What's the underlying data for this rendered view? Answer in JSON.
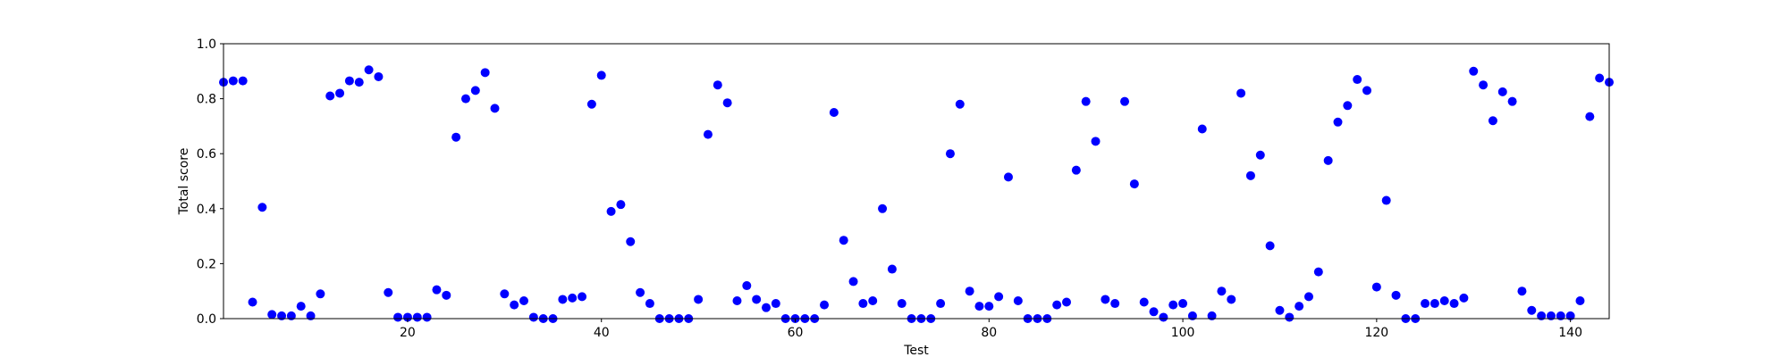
{
  "chart_data": {
    "type": "scatter",
    "title": "",
    "xlabel": "Test",
    "ylabel": "Total score",
    "xlim": [
      1,
      144
    ],
    "ylim": [
      0,
      1.0
    ],
    "xticks": [
      20,
      40,
      60,
      80,
      100,
      120,
      140
    ],
    "yticks": [
      0.0,
      0.2,
      0.4,
      0.6,
      0.8,
      1.0
    ],
    "xtick_labels": [
      "20",
      "40",
      "60",
      "80",
      "100",
      "120",
      "140"
    ],
    "ytick_labels": [
      "0.0",
      "0.2",
      "0.4",
      "0.6",
      "0.8",
      "1.0"
    ],
    "grid": false,
    "legend": "none",
    "marker_color": "#0000ff",
    "x": [
      1,
      2,
      3,
      4,
      5,
      6,
      7,
      8,
      9,
      10,
      11,
      12,
      13,
      14,
      15,
      16,
      17,
      18,
      19,
      20,
      21,
      22,
      23,
      24,
      25,
      26,
      27,
      28,
      29,
      30,
      31,
      32,
      33,
      34,
      35,
      36,
      37,
      38,
      39,
      40,
      41,
      42,
      43,
      44,
      45,
      46,
      47,
      48,
      49,
      50,
      51,
      52,
      53,
      54,
      55,
      56,
      57,
      58,
      59,
      60,
      61,
      62,
      63,
      64,
      65,
      66,
      67,
      68,
      69,
      70,
      71,
      72,
      73,
      74,
      75,
      76,
      77,
      78,
      79,
      80,
      81,
      82,
      83,
      84,
      85,
      86,
      87,
      88,
      89,
      90,
      91,
      92,
      93,
      94,
      95,
      96,
      97,
      98,
      99,
      100,
      101,
      102,
      103,
      104,
      105,
      106,
      107,
      108,
      109,
      110,
      111,
      112,
      113,
      114,
      115,
      116,
      117,
      118,
      119,
      120,
      121,
      122,
      123,
      124,
      125,
      126,
      127,
      128,
      129,
      130,
      131,
      132,
      133,
      134,
      135,
      136,
      137,
      138,
      139,
      140,
      141,
      142,
      143,
      144
    ],
    "y": [
      0.86,
      0.865,
      0.865,
      0.06,
      0.405,
      0.015,
      0.01,
      0.01,
      0.045,
      0.01,
      0.09,
      0.81,
      0.82,
      0.865,
      0.86,
      0.905,
      0.88,
      0.095,
      0.005,
      0.005,
      0.005,
      0.005,
      0.105,
      0.085,
      0.66,
      0.8,
      0.83,
      0.895,
      0.765,
      0.09,
      0.05,
      0.065,
      0.005,
      0.0,
      0.0,
      0.07,
      0.075,
      0.08,
      0.78,
      0.885,
      0.39,
      0.415,
      0.28,
      0.095,
      0.055,
      0.0,
      0.0,
      0.0,
      0.0,
      0.07,
      0.67,
      0.85,
      0.785,
      0.065,
      0.12,
      0.07,
      0.04,
      0.055,
      0.0,
      0.0,
      0.0,
      0.0,
      0.05,
      0.75,
      0.285,
      0.135,
      0.055,
      0.065,
      0.4,
      0.18,
      0.055,
      0.0,
      0.0,
      0.0,
      0.055,
      0.6,
      0.78,
      0.1,
      0.045,
      0.045,
      0.08,
      0.515,
      0.065,
      0.0,
      0.0,
      0.0,
      0.05,
      0.06,
      0.54,
      0.79,
      0.645,
      0.07,
      0.055,
      0.79,
      0.49,
      0.06,
      0.025,
      0.005,
      0.05,
      0.055,
      0.01,
      0.69,
      0.01,
      0.1,
      0.07,
      0.82,
      0.52,
      0.595,
      0.265,
      0.03,
      0.005,
      0.045,
      0.08,
      0.17,
      0.575,
      0.715,
      0.775,
      0.87,
      0.83,
      0.115,
      0.43,
      0.085,
      0.0,
      0.0,
      0.055,
      0.055,
      0.065,
      0.055,
      0.075,
      0.9,
      0.85,
      0.72,
      0.825,
      0.79,
      0.1,
      0.03,
      0.01,
      0.01,
      0.01,
      0.01,
      0.065,
      0.735,
      0.875,
      0.86
    ]
  }
}
